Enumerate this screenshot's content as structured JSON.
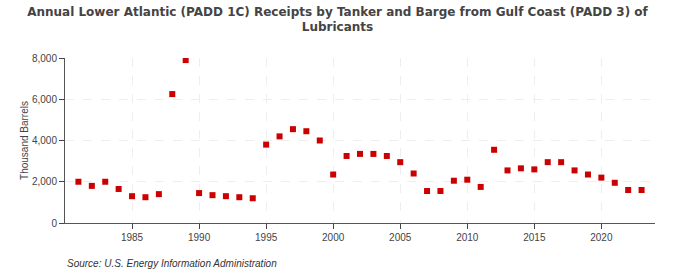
{
  "chart_data": {
    "type": "scatter",
    "title": "Annual Lower Atlantic (PADD 1C) Receipts by Tanker and Barge from Gulf Coast (PADD 3) of\nLubricants",
    "ylabel": "Thousand Barrels",
    "annotations": [
      "Source: U.S. Energy Information Administration"
    ],
    "color": "#cc0000",
    "marker": "square",
    "x": [
      1981,
      1982,
      1983,
      1984,
      1985,
      1986,
      1987,
      1988,
      1989,
      1990,
      1991,
      1992,
      1993,
      1994,
      1995,
      1996,
      1997,
      1998,
      1999,
      2000,
      2001,
      2002,
      2003,
      2004,
      2005,
      2006,
      2007,
      2008,
      2009,
      2010,
      2011,
      2012,
      2013,
      2014,
      2015,
      2016,
      2017,
      2018,
      2019,
      2020,
      2021,
      2022,
      2023
    ],
    "values": [
      2000,
      1800,
      2000,
      1650,
      1300,
      1250,
      1400,
      6250,
      7900,
      1450,
      1350,
      1300,
      1250,
      1200,
      3800,
      4200,
      4550,
      4450,
      4000,
      2350,
      3250,
      3350,
      3350,
      3250,
      2950,
      2400,
      1550,
      1550,
      2050,
      2100,
      1750,
      3550,
      2550,
      2650,
      2600,
      2950,
      2950,
      2550,
      2350,
      2200,
      1950,
      1600,
      1600
    ],
    "xlim": [
      1980,
      2024
    ],
    "xticks": [
      1985,
      1990,
      1995,
      2000,
      2005,
      2010,
      2015,
      2020
    ],
    "ylim": [
      0,
      8000
    ],
    "yticks": [
      0,
      {
        "value": 2000,
        "label": "2,000"
      },
      {
        "value": 4000,
        "label": "4,000"
      },
      {
        "value": 6000,
        "label": "6,000"
      },
      {
        "value": 8000,
        "label": "8,000"
      }
    ],
    "grid": true
  }
}
